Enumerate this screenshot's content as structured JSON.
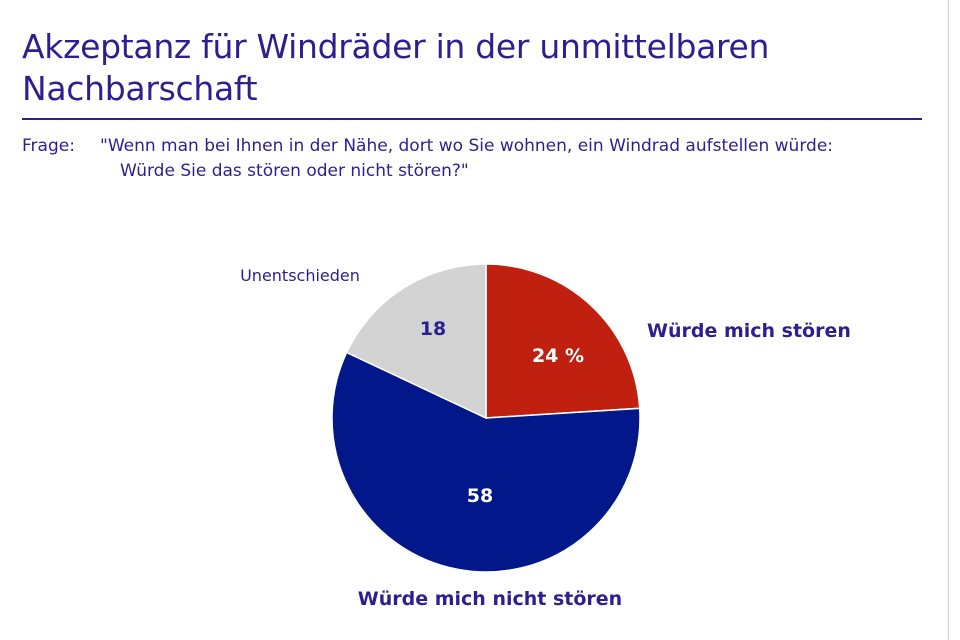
{
  "title": "Akzeptanz für Windräder in der unmittelbaren Nachbarschaft",
  "question": {
    "prefix": "Frage:",
    "line1": "\"Wenn man bei Ihnen in der Nähe, dort wo Sie wohnen, ein Windrad aufstellen würde:",
    "line2": "Würde Sie das stören oder nicht stören?\""
  },
  "colors": {
    "title": "#2e1f8f",
    "label": "#2e1f8f"
  },
  "chart_data": {
    "type": "pie",
    "start_angle_deg": 0,
    "direction": "clockwise",
    "slices": [
      {
        "name": "Würde mich stören",
        "value": 24,
        "value_label": "24 %",
        "color": "#c0200f",
        "text_color": "#ffffff"
      },
      {
        "name": "Würde mich nicht stören",
        "value": 58,
        "value_label": "58",
        "color": "#02188a",
        "text_color": "#ffffff"
      },
      {
        "name": "Unentschieden",
        "value": 18,
        "value_label": "18",
        "color": "#d3d3d3",
        "text_color": "#2e1f8f"
      }
    ]
  }
}
